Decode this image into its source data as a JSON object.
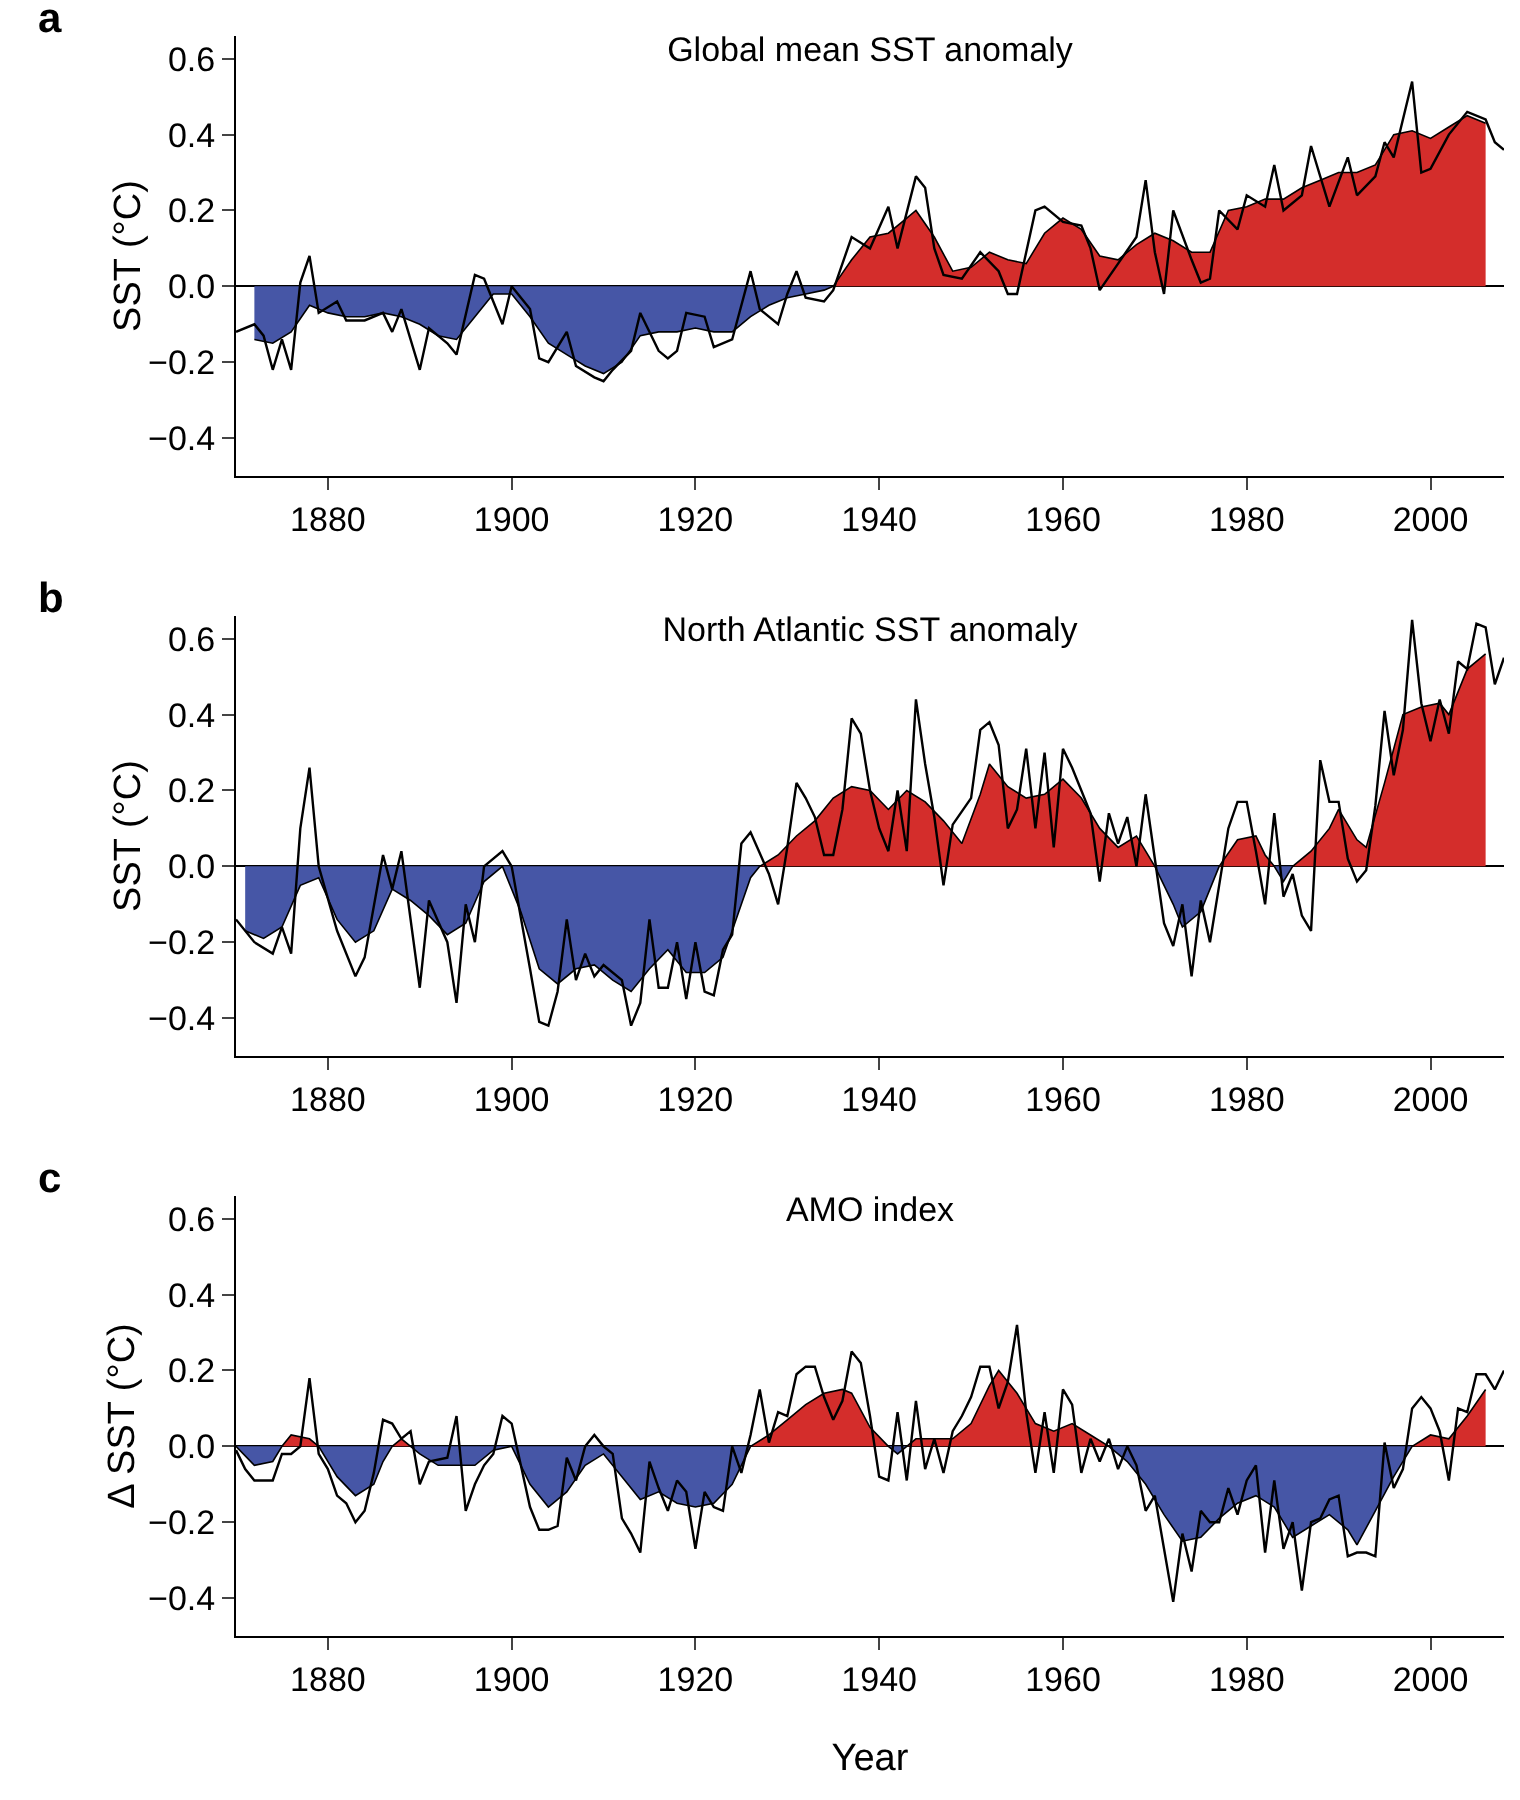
{
  "chart_data": [
    {
      "type": "area",
      "title": "Global mean SST anomaly",
      "ylabel": "SST (°C)",
      "annotations": [
        "a"
      ],
      "xlim": [
        1870,
        2008
      ],
      "ylim": [
        -0.5,
        0.66
      ],
      "xticks": [
        1880,
        1900,
        1920,
        1940,
        1960,
        1980,
        2000
      ],
      "yticks": [
        {
          "value": -0.4,
          "label": "−0.4"
        },
        {
          "value": -0.2,
          "label": "−0.2"
        },
        {
          "value": 0,
          "label": "0.0"
        },
        {
          "value": 0.2,
          "label": "0.2"
        },
        {
          "value": 0.4,
          "label": "0.4"
        },
        {
          "value": 0.6,
          "label": "0.6"
        }
      ],
      "series": [
        {
          "color": "#4656a6",
          "x": [
            1872,
            1874,
            1876,
            1878,
            1880,
            1882,
            1884,
            1886,
            1888,
            1890,
            1892,
            1894,
            1896,
            1898,
            1900,
            1902,
            1904,
            1906,
            1908,
            1910,
            1912,
            1914,
            1916,
            1918,
            1920,
            1922,
            1924,
            1926,
            1928,
            1930,
            1932,
            1934,
            1935
          ],
          "values": [
            -0.14,
            -0.15,
            -0.12,
            -0.05,
            -0.07,
            -0.08,
            -0.08,
            -0.07,
            -0.08,
            -0.1,
            -0.13,
            -0.14,
            -0.08,
            -0.02,
            -0.02,
            -0.08,
            -0.15,
            -0.18,
            -0.21,
            -0.23,
            -0.2,
            -0.13,
            -0.12,
            -0.12,
            -0.11,
            -0.12,
            -0.12,
            -0.08,
            -0.05,
            -0.03,
            -0.02,
            -0.01,
            0
          ]
        },
        {
          "color": "#d42d2b",
          "x": [
            1935,
            1937,
            1939,
            1941,
            1943,
            1944,
            1946,
            1948,
            1950,
            1952,
            1954,
            1956,
            1958,
            1960,
            1962,
            1964,
            1966,
            1968,
            1970,
            1972,
            1974,
            1976,
            1978,
            1980,
            1982,
            1984,
            1986,
            1988,
            1990,
            1992,
            1994,
            1996,
            1998,
            2000,
            2002,
            2004,
            2006
          ],
          "values": [
            0,
            0.07,
            0.13,
            0.14,
            0.18,
            0.2,
            0.13,
            0.04,
            0.05,
            0.09,
            0.07,
            0.06,
            0.14,
            0.18,
            0.15,
            0.08,
            0.07,
            0.11,
            0.14,
            0.12,
            0.09,
            0.09,
            0.2,
            0.21,
            0.23,
            0.23,
            0.26,
            0.28,
            0.3,
            0.3,
            0.32,
            0.4,
            0.41,
            0.39,
            0.42,
            0.45,
            0.43
          ]
        },
        {
          "type": "line",
          "color": "#000000",
          "x": [
            1870,
            1872,
            1873,
            1874,
            1875,
            1876,
            1877,
            1878,
            1879,
            1881,
            1882,
            1884,
            1886,
            1887,
            1888,
            1890,
            1891,
            1893,
            1894,
            1896,
            1897,
            1899,
            1900,
            1902,
            1903,
            1904,
            1906,
            1907,
            1909,
            1910,
            1911,
            1913,
            1914,
            1916,
            1917,
            1918,
            1919,
            1921,
            1922,
            1924,
            1926,
            1927,
            1929,
            1930,
            1931,
            1932,
            1934,
            1935,
            1937,
            1939,
            1941,
            1942,
            1944,
            1945,
            1946,
            1947,
            1949,
            1951,
            1953,
            1954,
            1955,
            1957,
            1958,
            1960,
            1962,
            1963,
            1964,
            1966,
            1968,
            1969,
            1970,
            1971,
            1972,
            1974,
            1975,
            1976,
            1977,
            1979,
            1980,
            1982,
            1983,
            1984,
            1986,
            1987,
            1988,
            1989,
            1991,
            1992,
            1994,
            1995,
            1996,
            1998,
            1999,
            2000,
            2002,
            2004,
            2006,
            2007,
            2008
          ],
          "values": [
            -0.12,
            -0.1,
            -0.13,
            -0.22,
            -0.14,
            -0.22,
            0.01,
            0.08,
            -0.07,
            -0.04,
            -0.09,
            -0.09,
            -0.07,
            -0.12,
            -0.06,
            -0.22,
            -0.11,
            -0.15,
            -0.18,
            0.03,
            0.02,
            -0.1,
            0.0,
            -0.06,
            -0.19,
            -0.2,
            -0.12,
            -0.21,
            -0.24,
            -0.25,
            -0.22,
            -0.17,
            -0.07,
            -0.17,
            -0.19,
            -0.17,
            -0.07,
            -0.08,
            -0.16,
            -0.14,
            0.04,
            -0.06,
            -0.1,
            -0.02,
            0.04,
            -0.03,
            -0.04,
            -0.01,
            0.13,
            0.1,
            0.21,
            0.1,
            0.29,
            0.26,
            0.1,
            0.03,
            0.02,
            0.09,
            0.04,
            -0.02,
            -0.02,
            0.2,
            0.21,
            0.17,
            0.16,
            0.1,
            -0.01,
            0.06,
            0.13,
            0.28,
            0.09,
            -0.02,
            0.2,
            0.07,
            0.01,
            0.02,
            0.2,
            0.15,
            0.24,
            0.21,
            0.32,
            0.2,
            0.24,
            0.37,
            0.29,
            0.21,
            0.34,
            0.24,
            0.29,
            0.38,
            0.34,
            0.54,
            0.3,
            0.31,
            0.4,
            0.46,
            0.44,
            0.38,
            0.36
          ]
        }
      ]
    },
    {
      "type": "area",
      "title": "North Atlantic SST anomaly",
      "ylabel": "SST (°C)",
      "annotations": [
        "b"
      ],
      "xlim": [
        1870,
        2008
      ],
      "ylim": [
        -0.5,
        0.66
      ],
      "xticks": [
        1880,
        1900,
        1920,
        1940,
        1960,
        1980,
        2000
      ],
      "yticks": [
        {
          "value": -0.4,
          "label": "−0.4"
        },
        {
          "value": -0.2,
          "label": "−0.2"
        },
        {
          "value": 0,
          "label": "0.0"
        },
        {
          "value": 0.2,
          "label": "0.2"
        },
        {
          "value": 0.4,
          "label": "0.4"
        },
        {
          "value": 0.6,
          "label": "0.6"
        }
      ],
      "series": [
        {
          "color": "#4656a6",
          "x": [
            1871,
            1873,
            1875,
            1877,
            1879,
            1881,
            1883,
            1885,
            1887,
            1889,
            1891,
            1893,
            1895,
            1897,
            1899,
            1901,
            1903,
            1905,
            1907,
            1909,
            1911,
            1913,
            1915,
            1917,
            1919,
            1921,
            1923,
            1925,
            1926,
            1927,
            1950,
            1970,
            1972,
            1973,
            1975,
            1977,
            1980,
            1983,
            1984,
            1985
          ],
          "values": [
            -0.17,
            -0.19,
            -0.16,
            -0.05,
            -0.03,
            -0.14,
            -0.2,
            -0.17,
            -0.06,
            -0.09,
            -0.13,
            -0.18,
            -0.15,
            -0.04,
            0,
            -0.12,
            -0.27,
            -0.31,
            -0.27,
            -0.26,
            -0.3,
            -0.33,
            -0.27,
            -0.22,
            -0.28,
            -0.28,
            -0.24,
            -0.1,
            -0.03,
            0,
            null,
            0,
            -0.1,
            -0.16,
            -0.12,
            0,
            null,
            0,
            -0.04,
            0
          ]
        },
        {
          "color": "#d42d2b",
          "x": [
            1927,
            1929,
            1931,
            1933,
            1935,
            1937,
            1939,
            1941,
            1943,
            1945,
            1947,
            1949,
            1951,
            1952,
            1954,
            1956,
            1958,
            1960,
            1962,
            1964,
            1966,
            1968,
            1969,
            1970,
            1973,
            1977,
            1979,
            1981,
            1982,
            1983,
            1984,
            1985,
            1987,
            1989,
            1990,
            1992,
            1993,
            1995,
            1997,
            1999,
            2001,
            2002,
            2004,
            2006
          ],
          "values": [
            0,
            0.03,
            0.08,
            0.12,
            0.18,
            0.21,
            0.2,
            0.15,
            0.2,
            0.17,
            0.12,
            0.06,
            0.19,
            0.27,
            0.21,
            0.18,
            0.19,
            0.23,
            0.18,
            0.1,
            0.05,
            0.08,
            0.04,
            0,
            null,
            0,
            0.07,
            0.08,
            0.03,
            0,
            null,
            0,
            0.04,
            0.1,
            0.15,
            0.07,
            0.05,
            0.22,
            0.4,
            0.42,
            0.43,
            0.4,
            0.52,
            0.56
          ]
        },
        {
          "type": "line",
          "color": "#000000",
          "x": [
            1870,
            1872,
            1874,
            1875,
            1876,
            1877,
            1878,
            1879,
            1881,
            1883,
            1884,
            1886,
            1887,
            1888,
            1890,
            1891,
            1893,
            1894,
            1895,
            1896,
            1897,
            1899,
            1900,
            1902,
            1903,
            1904,
            1905,
            1906,
            1907,
            1908,
            1909,
            1910,
            1912,
            1913,
            1914,
            1915,
            1916,
            1917,
            1918,
            1919,
            1920,
            1921,
            1922,
            1923,
            1924,
            1925,
            1926,
            1928,
            1929,
            1930,
            1931,
            1932,
            1933,
            1934,
            1935,
            1936,
            1937,
            1938,
            1939,
            1940,
            1941,
            1942,
            1943,
            1944,
            1945,
            1946,
            1947,
            1948,
            1950,
            1951,
            1952,
            1953,
            1954,
            1955,
            1956,
            1957,
            1958,
            1959,
            1960,
            1961,
            1962,
            1963,
            1964,
            1965,
            1966,
            1967,
            1968,
            1969,
            1970,
            1971,
            1972,
            1973,
            1974,
            1975,
            1976,
            1977,
            1978,
            1979,
            1980,
            1981,
            1982,
            1983,
            1984,
            1985,
            1986,
            1987,
            1988,
            1989,
            1990,
            1991,
            1992,
            1993,
            1994,
            1995,
            1996,
            1997,
            1998,
            1999,
            2000,
            2001,
            2002,
            2003,
            2004,
            2005,
            2006,
            2007,
            2008
          ],
          "values": [
            -0.14,
            -0.2,
            -0.23,
            -0.16,
            -0.23,
            0.1,
            0.26,
            0.0,
            -0.17,
            -0.29,
            -0.24,
            0.03,
            -0.06,
            0.04,
            -0.32,
            -0.09,
            -0.2,
            -0.36,
            -0.1,
            -0.2,
            0.0,
            0.04,
            0.0,
            -0.27,
            -0.41,
            -0.42,
            -0.33,
            -0.14,
            -0.3,
            -0.23,
            -0.29,
            -0.26,
            -0.3,
            -0.42,
            -0.36,
            -0.14,
            -0.32,
            -0.32,
            -0.2,
            -0.35,
            -0.2,
            -0.33,
            -0.34,
            -0.22,
            -0.18,
            0.06,
            0.09,
            -0.02,
            -0.1,
            0.05,
            0.22,
            0.18,
            0.13,
            0.03,
            0.03,
            0.15,
            0.39,
            0.35,
            0.2,
            0.1,
            0.04,
            0.2,
            0.04,
            0.44,
            0.27,
            0.13,
            -0.05,
            0.11,
            0.18,
            0.36,
            0.38,
            0.32,
            0.1,
            0.15,
            0.31,
            0.1,
            0.3,
            0.05,
            0.31,
            0.26,
            0.2,
            0.14,
            -0.04,
            0.14,
            0.06,
            0.13,
            0.0,
            0.19,
            0.02,
            -0.15,
            -0.21,
            -0.1,
            -0.29,
            -0.09,
            -0.2,
            -0.05,
            0.1,
            0.17,
            0.17,
            0.04,
            -0.1,
            0.14,
            -0.08,
            -0.02,
            -0.13,
            -0.17,
            0.28,
            0.17,
            0.17,
            0.02,
            -0.04,
            -0.01,
            0.16,
            0.41,
            0.24,
            0.36,
            0.65,
            0.43,
            0.33,
            0.44,
            0.35,
            0.54,
            0.52,
            0.64,
            0.63,
            0.48,
            0.55
          ]
        }
      ]
    },
    {
      "type": "area",
      "title": "AMO index",
      "ylabel": "Δ SST (°C)",
      "xlabel": "Year",
      "annotations": [
        "c"
      ],
      "xlim": [
        1870,
        2008
      ],
      "ylim": [
        -0.5,
        0.66
      ],
      "xticks": [
        1880,
        1900,
        1920,
        1940,
        1960,
        1980,
        2000
      ],
      "yticks": [
        {
          "value": -0.4,
          "label": "−0.4"
        },
        {
          "value": -0.2,
          "label": "−0.2"
        },
        {
          "value": 0,
          "label": "0.0"
        },
        {
          "value": 0.2,
          "label": "0.2"
        },
        {
          "value": 0.4,
          "label": "0.4"
        },
        {
          "value": 0.6,
          "label": "0.6"
        }
      ],
      "series": [
        {
          "color": "#4656a6",
          "x": [
            1870,
            1872,
            1874,
            1875,
            1877,
            1879,
            1881,
            1883,
            1885,
            1886,
            1887,
            1888,
            1889,
            1890,
            1892,
            1894,
            1896,
            1898,
            1900,
            1902,
            1904,
            1906,
            1908,
            1910,
            1912,
            1914,
            1916,
            1918,
            1920,
            1922,
            1924,
            1926,
            1935,
            1941,
            1942,
            1943,
            1955,
            1965,
            1967,
            1969,
            1971,
            1973,
            1975,
            1977,
            1979,
            1981,
            1983,
            1985,
            1987,
            1989,
            1991,
            1992,
            1994,
            1996,
            1998
          ],
          "values": [
            0,
            -0.05,
            -0.04,
            0,
            null,
            0,
            -0.08,
            -0.13,
            -0.1,
            -0.04,
            0,
            null,
            0,
            -0.02,
            -0.05,
            -0.05,
            -0.05,
            -0.01,
            0,
            -0.1,
            -0.16,
            -0.12,
            -0.05,
            -0.02,
            -0.08,
            -0.14,
            -0.12,
            -0.15,
            -0.16,
            -0.15,
            -0.1,
            0,
            null,
            0,
            -0.02,
            0,
            null,
            0,
            -0.04,
            -0.1,
            -0.18,
            -0.25,
            -0.24,
            -0.19,
            -0.15,
            -0.13,
            -0.16,
            -0.24,
            -0.21,
            -0.18,
            -0.22,
            -0.26,
            -0.17,
            -0.08,
            0
          ]
        },
        {
          "color": "#d42d2b",
          "x": [
            1875,
            1876,
            1878,
            1879,
            1883,
            1887,
            1888,
            1889,
            1910,
            1926,
            1928,
            1930,
            1932,
            1934,
            1936,
            1937,
            1939,
            1941,
            1942,
            1943,
            1944,
            1946,
            1948,
            1950,
            1952,
            1953,
            1955,
            1957,
            1959,
            1961,
            1963,
            1965,
            1980,
            1998,
            2000,
            2002,
            2004,
            2006
          ],
          "values": [
            0,
            0.03,
            0.02,
            0,
            null,
            0,
            0.02,
            0,
            null,
            0,
            0.03,
            0.07,
            0.11,
            0.14,
            0.15,
            0.14,
            0.05,
            0,
            null,
            0,
            0.02,
            0.02,
            0.02,
            0.06,
            0.16,
            0.2,
            0.14,
            0.06,
            0.04,
            0.06,
            0.03,
            0,
            null,
            0,
            0.03,
            0.02,
            0.08,
            0.15
          ]
        },
        {
          "type": "line",
          "color": "#000000",
          "x": [
            1870,
            1871,
            1872,
            1874,
            1875,
            1876,
            1877,
            1878,
            1879,
            1880,
            1881,
            1882,
            1883,
            1884,
            1885,
            1886,
            1887,
            1888,
            1889,
            1890,
            1891,
            1893,
            1894,
            1895,
            1896,
            1897,
            1898,
            1899,
            1900,
            1901,
            1902,
            1903,
            1904,
            1905,
            1906,
            1907,
            1908,
            1909,
            1910,
            1911,
            1912,
            1913,
            1914,
            1915,
            1916,
            1917,
            1918,
            1919,
            1920,
            1921,
            1922,
            1923,
            1924,
            1925,
            1926,
            1927,
            1928,
            1929,
            1930,
            1931,
            1932,
            1933,
            1934,
            1935,
            1936,
            1937,
            1938,
            1939,
            1940,
            1941,
            1942,
            1943,
            1944,
            1945,
            1946,
            1947,
            1948,
            1949,
            1950,
            1951,
            1952,
            1953,
            1954,
            1955,
            1956,
            1957,
            1958,
            1959,
            1960,
            1961,
            1962,
            1963,
            1964,
            1965,
            1966,
            1967,
            1968,
            1969,
            1970,
            1971,
            1972,
            1973,
            1974,
            1975,
            1976,
            1977,
            1978,
            1979,
            1980,
            1981,
            1982,
            1983,
            1984,
            1985,
            1986,
            1987,
            1988,
            1989,
            1990,
            1991,
            1992,
            1993,
            1994,
            1995,
            1996,
            1997,
            1998,
            1999,
            2000,
            2001,
            2002,
            2003,
            2004,
            2005,
            2006,
            2007,
            2008
          ],
          "values": [
            -0.01,
            -0.06,
            -0.09,
            -0.09,
            -0.02,
            -0.02,
            0.0,
            0.18,
            -0.02,
            -0.06,
            -0.13,
            -0.15,
            -0.2,
            -0.17,
            -0.07,
            0.07,
            0.06,
            0.02,
            0.04,
            -0.1,
            -0.04,
            -0.03,
            0.08,
            -0.17,
            -0.1,
            -0.05,
            -0.02,
            0.08,
            0.06,
            -0.05,
            -0.16,
            -0.22,
            -0.22,
            -0.21,
            -0.03,
            -0.09,
            0.0,
            0.03,
            0.0,
            -0.02,
            -0.19,
            -0.23,
            -0.28,
            -0.04,
            -0.11,
            -0.17,
            -0.09,
            -0.12,
            -0.27,
            -0.12,
            -0.16,
            -0.17,
            0.0,
            -0.07,
            0.03,
            0.15,
            0.01,
            0.09,
            0.08,
            0.19,
            0.21,
            0.21,
            0.13,
            0.07,
            0.12,
            0.25,
            0.22,
            0.08,
            -0.08,
            -0.09,
            0.09,
            -0.09,
            0.12,
            -0.06,
            0.02,
            -0.07,
            0.04,
            0.08,
            0.13,
            0.21,
            0.21,
            0.1,
            0.17,
            0.32,
            0.09,
            -0.07,
            0.09,
            -0.07,
            0.15,
            0.11,
            -0.07,
            0.02,
            -0.04,
            0.02,
            -0.06,
            0.0,
            -0.05,
            -0.17,
            -0.13,
            -0.27,
            -0.41,
            -0.23,
            -0.33,
            -0.17,
            -0.2,
            -0.2,
            -0.11,
            -0.18,
            -0.09,
            -0.05,
            -0.28,
            -0.09,
            -0.27,
            -0.2,
            -0.38,
            -0.2,
            -0.19,
            -0.14,
            -0.13,
            -0.29,
            -0.28,
            -0.28,
            -0.29,
            0.01,
            -0.11,
            -0.06,
            0.1,
            0.13,
            0.1,
            0.04,
            -0.09,
            0.1,
            0.09,
            0.19,
            0.19,
            0.15,
            0.2
          ]
        }
      ]
    }
  ]
}
